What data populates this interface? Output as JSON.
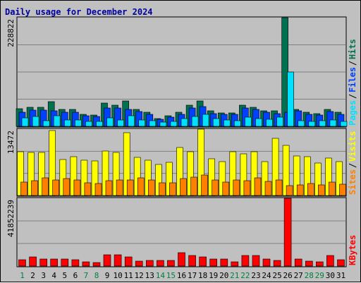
{
  "title": "Daily usage for December 2024",
  "colors": {
    "background": "#c0c0c0",
    "plot_background": "#c0c0c0",
    "title": "#0000a0",
    "grid": "#808080",
    "hits": "#007050",
    "files": "#0040ff",
    "pages": "#00e0ff",
    "visits": "#ffff00",
    "sites": "#ff8000",
    "kbytes": "#ff0000",
    "weekday_label": "#000000",
    "weekend_label": "#008040"
  },
  "chart_data": [
    {
      "type": "bar",
      "panel": "hits-files-pages",
      "categories": [
        "1",
        "2",
        "3",
        "4",
        "5",
        "6",
        "7",
        "8",
        "9",
        "10",
        "11",
        "12",
        "13",
        "14",
        "15",
        "16",
        "17",
        "18",
        "19",
        "20",
        "21",
        "22",
        "23",
        "24",
        "25",
        "26",
        "27",
        "28",
        "29",
        "30",
        "31"
      ],
      "weekend_days": [
        "1",
        "7",
        "8",
        "14",
        "15",
        "21",
        "22",
        "28",
        "29"
      ],
      "ylim": [
        0,
        228822
      ],
      "max_label": "228822",
      "legend": [
        {
          "text": "Hits",
          "color_key": "hits"
        },
        {
          "text": "Files",
          "color_key": "files"
        },
        {
          "text": "Pages",
          "color_key": "pages"
        }
      ],
      "series": [
        {
          "name": "Hits",
          "color_key": "hits",
          "values": [
            37000,
            40000,
            40000,
            52000,
            35000,
            36000,
            25000,
            24000,
            49000,
            44000,
            53000,
            36000,
            29000,
            17000,
            22000,
            30000,
            45000,
            54000,
            32000,
            28000,
            28000,
            44000,
            40000,
            33000,
            33000,
            228822,
            36000,
            30000,
            27000,
            36000,
            29000
          ]
        },
        {
          "name": "Files",
          "color_key": "files",
          "values": [
            30000,
            34000,
            34000,
            32000,
            29000,
            30000,
            22000,
            21000,
            39000,
            38000,
            35000,
            31000,
            25000,
            15000,
            19000,
            26000,
            39000,
            42000,
            27000,
            25000,
            25000,
            39000,
            35000,
            29000,
            27000,
            30000,
            32000,
            26000,
            24000,
            31000,
            26000
          ]
        },
        {
          "name": "Pages",
          "color_key": "pages",
          "values": [
            18000,
            21000,
            12000,
            23000,
            13000,
            14000,
            11000,
            10000,
            18000,
            13000,
            22000,
            13000,
            12000,
            9000,
            10000,
            17000,
            21000,
            25000,
            17000,
            14000,
            12000,
            19000,
            16000,
            15000,
            20000,
            115000,
            12000,
            11000,
            12000,
            14000,
            11000
          ]
        }
      ]
    },
    {
      "type": "bar",
      "panel": "visits-sites",
      "categories": [
        "1",
        "2",
        "3",
        "4",
        "5",
        "6",
        "7",
        "8",
        "9",
        "10",
        "11",
        "12",
        "13",
        "14",
        "15",
        "16",
        "17",
        "18",
        "19",
        "20",
        "21",
        "22",
        "23",
        "24",
        "25",
        "26",
        "27",
        "28",
        "29",
        "30",
        "31"
      ],
      "ylim": [
        0,
        13472
      ],
      "max_label": "13472",
      "legend": [
        {
          "text": "Visits",
          "color_key": "visits"
        },
        {
          "text": "Sites",
          "color_key": "sites"
        }
      ],
      "series": [
        {
          "name": "Visits",
          "color_key": "visits",
          "values": [
            8900,
            8800,
            8700,
            13200,
            7300,
            7900,
            7100,
            7000,
            9100,
            8700,
            12800,
            7800,
            7200,
            6300,
            6800,
            9700,
            8900,
            13472,
            7500,
            6900,
            8900,
            8400,
            8900,
            6900,
            11600,
            10200,
            8000,
            7900,
            6600,
            7600,
            6900
          ]
        },
        {
          "name": "Sites",
          "color_key": "sites",
          "values": [
            2700,
            3000,
            3600,
            3200,
            3400,
            3200,
            2600,
            2500,
            3000,
            3200,
            3200,
            3600,
            3200,
            2600,
            2600,
            3400,
            3700,
            4100,
            3100,
            2700,
            3200,
            3000,
            3600,
            2800,
            3100,
            2000,
            2100,
            2500,
            2100,
            2700,
            2300
          ]
        }
      ]
    },
    {
      "type": "bar",
      "panel": "kbytes",
      "categories": [
        "1",
        "2",
        "3",
        "4",
        "5",
        "6",
        "7",
        "8",
        "9",
        "10",
        "11",
        "12",
        "13",
        "14",
        "15",
        "16",
        "17",
        "18",
        "19",
        "20",
        "21",
        "22",
        "23",
        "24",
        "25",
        "26",
        "27",
        "28",
        "29",
        "30",
        "31"
      ],
      "ylim": [
        0,
        41852239
      ],
      "max_label": "41852239",
      "legend": [
        {
          "text": "KBytes",
          "color_key": "kbytes"
        }
      ],
      "series": [
        {
          "name": "KBytes",
          "color_key": "kbytes",
          "values": [
            3800000,
            5600000,
            4500000,
            4500000,
            4300000,
            4000000,
            2400000,
            2100000,
            6800000,
            6800000,
            5700000,
            3200000,
            3600000,
            3600000,
            3400000,
            8200000,
            6400000,
            5700000,
            4300000,
            4300000,
            2400000,
            6400000,
            6400000,
            4500000,
            3400000,
            41852239,
            4300000,
            2900000,
            2600000,
            6400000,
            3800000
          ]
        }
      ]
    }
  ]
}
